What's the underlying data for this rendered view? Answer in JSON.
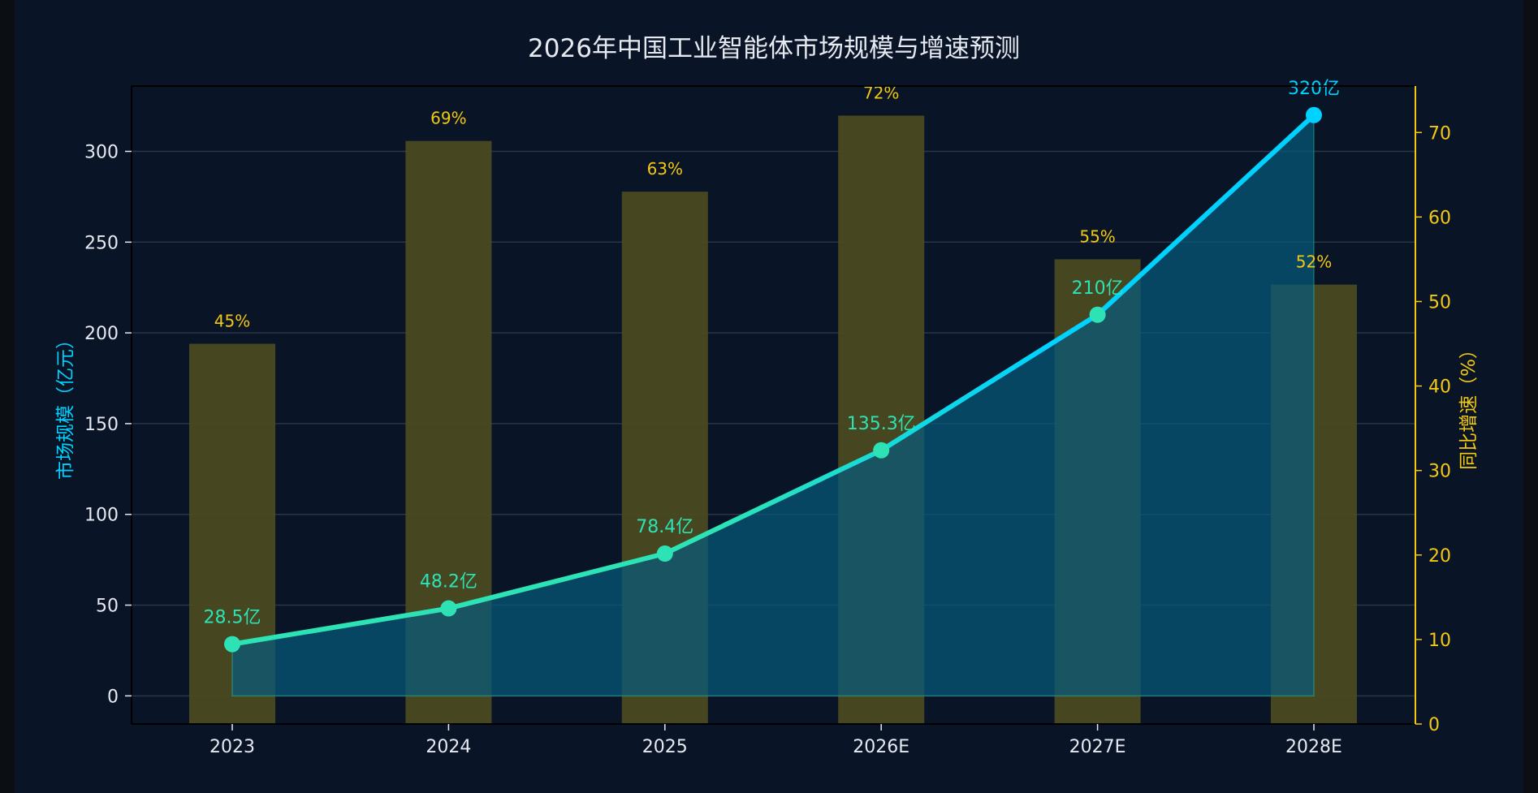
{
  "chart_data": {
    "type": "bar+line",
    "title": "2026年中国工业智能体市场规模与增速预测",
    "categories": [
      "2023",
      "2024",
      "2025",
      "2026E",
      "2027E",
      "2028E"
    ],
    "series": [
      {
        "name": "市场规模",
        "type": "line",
        "axis": "left",
        "values": [
          28.5,
          48.2,
          78.4,
          135.3,
          210,
          320
        ],
        "labels": [
          "28.5亿",
          "48.2亿",
          "78.4亿",
          "135.3亿",
          "210亿",
          "320亿"
        ]
      },
      {
        "name": "同比增速",
        "type": "bar",
        "axis": "right",
        "values": [
          45,
          69,
          63,
          72,
          55,
          52
        ],
        "labels": [
          "45%",
          "69%",
          "63%",
          "72%",
          "55%",
          "52%"
        ]
      }
    ],
    "ylabel": "市场规模（亿元）",
    "y2label": "同比增速（%）",
    "ylim": [
      -15.5,
      336
    ],
    "y2lim": [
      0,
      75.5
    ],
    "yticks": [
      0,
      50,
      100,
      150,
      200,
      250,
      300
    ],
    "y2ticks": [
      0,
      10,
      20,
      30,
      40,
      50,
      60,
      70
    ],
    "grid": true,
    "legend": "none"
  },
  "colors": {
    "background": "#0b0e13",
    "panel": "#0a1427",
    "axis_spine": "#000000",
    "left_axis": "#00d2ff",
    "right_axis": "#f2c811",
    "bar": "#4a4a20",
    "line_start": "#2de3b5",
    "line_end": "#00d2ff",
    "area": "#075a7a",
    "tick_text": "#e6eaf0",
    "title_text": "#e6eaf0",
    "grid": "#2a3548"
  }
}
